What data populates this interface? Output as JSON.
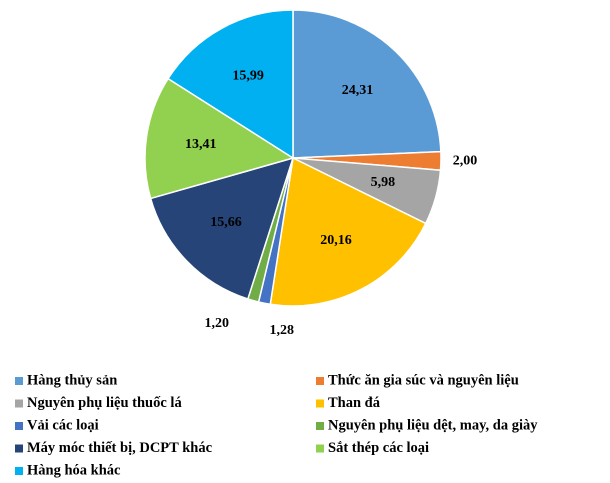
{
  "chart_data": {
    "type": "pie",
    "categories": [
      "Hàng thủy sản",
      "Thức ăn gia súc và nguyên liệu",
      "Nguyên phụ liệu thuốc lá",
      "Than đá",
      "Vải các loại",
      "Nguyên phụ liệu dệt, may, da giày",
      "Máy móc thiết bị, DCPT khác",
      "Sắt thép các loại",
      "Hàng hóa khác"
    ],
    "values": [
      24.31,
      2.0,
      5.98,
      20.16,
      1.28,
      1.2,
      15.66,
      13.41,
      15.99
    ],
    "value_labels": [
      "24,31",
      "2,00",
      "5,98",
      "20,16",
      "1,28",
      "1,20",
      "15,66",
      "13,41",
      "15,99"
    ],
    "colors": [
      "#5b9bd5",
      "#ed7d31",
      "#a5a5a5",
      "#ffc000",
      "#4472c4",
      "#70ad47",
      "#264478",
      "#92d050",
      "#00b0f0"
    ],
    "legend": "bottom"
  }
}
